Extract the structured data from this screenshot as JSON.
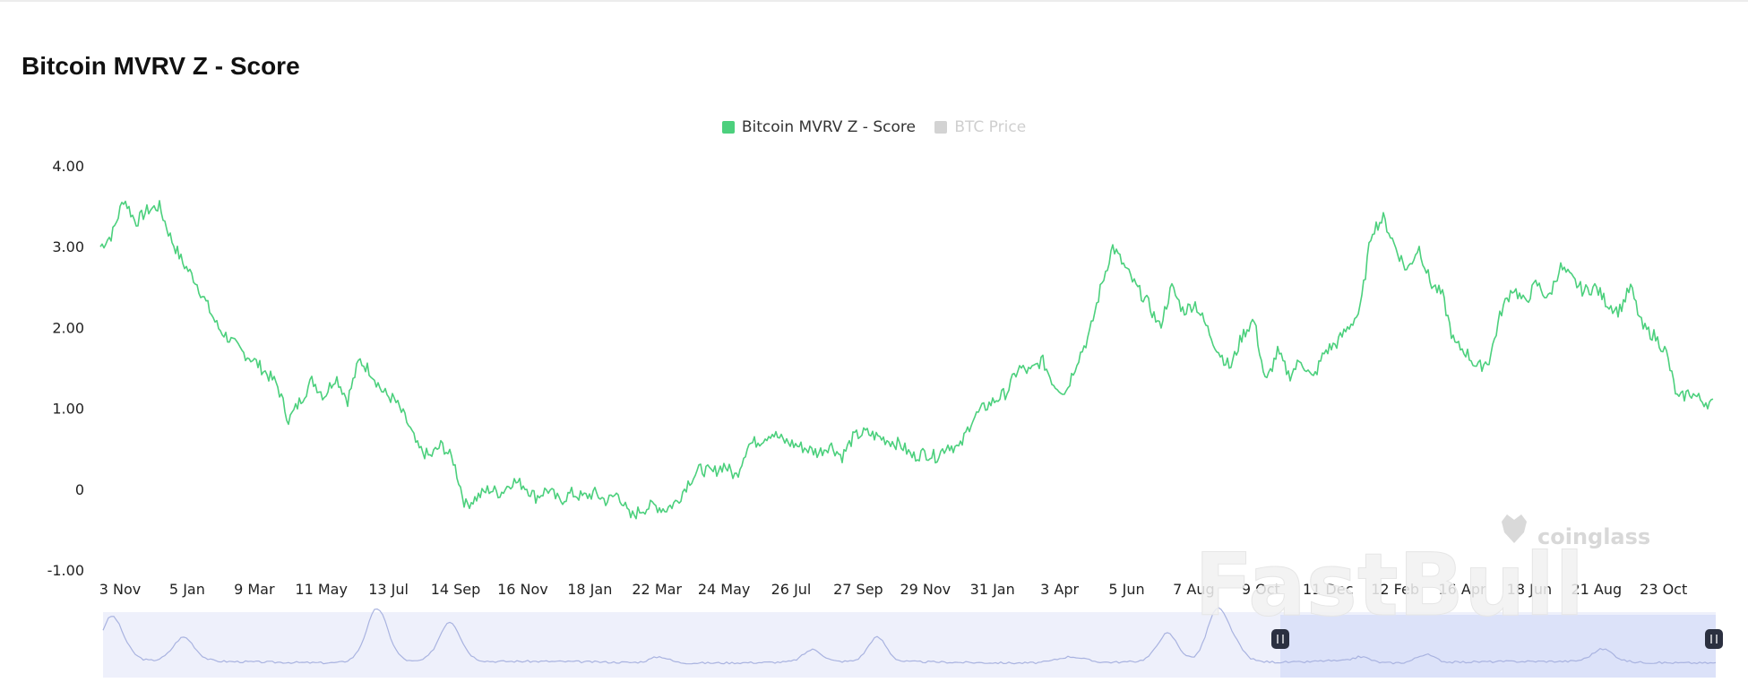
{
  "title": "Bitcoin MVRV Z - Score",
  "legend": [
    {
      "label": "Bitcoin MVRV Z - Score",
      "color": "#4cd07d",
      "active": true
    },
    {
      "label": "BTC Price",
      "color": "#cccccc",
      "active": false
    }
  ],
  "watermarks": {
    "coinglass": "coinglass",
    "fastbull": "FastBull"
  },
  "colors": {
    "line": "#4cd07d",
    "navigator_line": "#a9b3e0",
    "navigator_fill": "#eef0fb",
    "navigator_selected": "#d6ddf8",
    "handle": "#2b3040"
  },
  "chart_data": {
    "type": "line",
    "title": "Bitcoin MVRV Z - Score",
    "series": [
      {
        "name": "Bitcoin MVRV Z - Score",
        "x_index": [
          0,
          1,
          2,
          3,
          4,
          5,
          6,
          7,
          8,
          9,
          10,
          11,
          12,
          13,
          14,
          15,
          16,
          17,
          18,
          19,
          20,
          21,
          22,
          23,
          24,
          25,
          26,
          27,
          28,
          29,
          30,
          31,
          32,
          33,
          34,
          35,
          36,
          37,
          38,
          39,
          40,
          41,
          42,
          43,
          44,
          45,
          46,
          47,
          48,
          49,
          50,
          51,
          52,
          53,
          54,
          55,
          56,
          57,
          58,
          59,
          60,
          61,
          62,
          63,
          64,
          65,
          66,
          67,
          68,
          69,
          70,
          71,
          72,
          73,
          74,
          75,
          76,
          77,
          78,
          79,
          80,
          81,
          82,
          83,
          84,
          85,
          86,
          87,
          88,
          89,
          90,
          91,
          92,
          93,
          94,
          95,
          96,
          97,
          98,
          99,
          100,
          101,
          102,
          103,
          104,
          105,
          106,
          107,
          108,
          109,
          110,
          111,
          112,
          113,
          114,
          115,
          116,
          117,
          118,
          119,
          120,
          121,
          122,
          123,
          124,
          125
        ],
        "values": [
          3.0,
          3.15,
          3.6,
          3.3,
          3.45,
          3.5,
          3.1,
          2.8,
          2.6,
          2.3,
          2.0,
          1.85,
          1.7,
          1.6,
          1.45,
          1.3,
          0.85,
          1.1,
          1.35,
          1.15,
          1.4,
          1.1,
          1.6,
          1.45,
          1.2,
          1.1,
          0.85,
          0.5,
          0.4,
          0.55,
          0.35,
          -0.2,
          -0.1,
          0.0,
          -0.05,
          0.1,
          0.05,
          -0.1,
          0.0,
          -0.15,
          -0.05,
          -0.1,
          -0.05,
          -0.15,
          -0.05,
          -0.35,
          -0.25,
          -0.2,
          -0.25,
          -0.15,
          0.1,
          0.25,
          0.2,
          0.3,
          0.15,
          0.55,
          0.6,
          0.7,
          0.6,
          0.55,
          0.5,
          0.45,
          0.55,
          0.4,
          0.65,
          0.7,
          0.65,
          0.6,
          0.55,
          0.4,
          0.45,
          0.4,
          0.55,
          0.5,
          0.85,
          1.0,
          1.1,
          1.2,
          1.5,
          1.45,
          1.6,
          1.3,
          1.2,
          1.6,
          1.9,
          2.5,
          3.0,
          2.75,
          2.5,
          2.3,
          2.0,
          2.5,
          2.2,
          2.3,
          2.0,
          1.7,
          1.5,
          1.9,
          2.1,
          1.3,
          1.7,
          1.4,
          1.6,
          1.35,
          1.7,
          1.8,
          2.0,
          2.2,
          3.2,
          3.35,
          3.0,
          2.7,
          3.0,
          2.55,
          2.4,
          1.8,
          1.7,
          1.5,
          1.6,
          2.2,
          2.5,
          2.3,
          2.55,
          2.35,
          2.75,
          2.6
        ]
      }
    ],
    "tail_values": [
      2.45,
      2.5,
      2.3,
      2.2,
      2.5,
      2.0,
      1.9,
      1.7,
      1.1,
      1.2,
      1.1,
      1.05
    ],
    "x_tick_labels": [
      "3 Nov",
      "5 Jan",
      "9 Mar",
      "11 May",
      "13 Jul",
      "14 Sep",
      "16 Nov",
      "18 Jan",
      "22 Mar",
      "24 May",
      "26 Jul",
      "27 Sep",
      "29 Nov",
      "31 Jan",
      "3 Apr",
      "5 Jun",
      "7 Aug",
      "9 Oct",
      "11 Dec",
      "12 Feb",
      "16 Apr",
      "18 Jun",
      "21 Aug",
      "23 Oct"
    ],
    "y_tick_labels": [
      "4.00",
      "3.00",
      "2.00",
      "1.00",
      "0",
      "-1.00"
    ],
    "ylim": [
      -1,
      4
    ],
    "xlabel": "",
    "ylabel": "",
    "grid": false,
    "legend_position": "top-center",
    "navigator_selection": [
      0.73,
      1.0
    ]
  }
}
